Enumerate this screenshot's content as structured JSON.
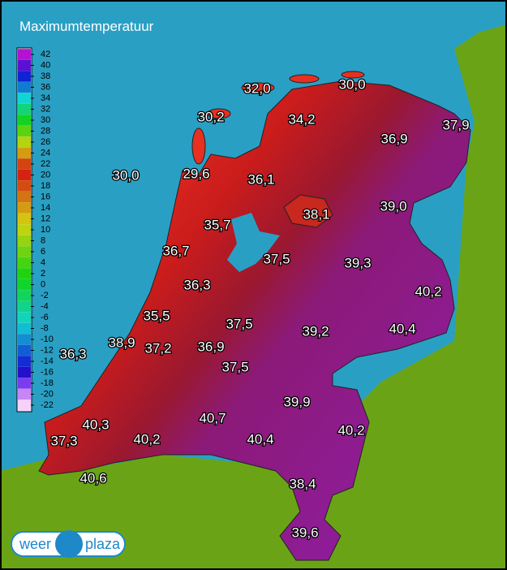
{
  "header": {
    "title": "Maximumtemperatuur"
  },
  "legend": {
    "ticks": [
      42,
      40,
      38,
      36,
      34,
      32,
      30,
      28,
      26,
      24,
      22,
      20,
      18,
      16,
      14,
      12,
      10,
      8,
      6,
      4,
      2,
      0,
      -2,
      -4,
      -6,
      -8,
      -10,
      -12,
      -14,
      -16,
      -18,
      -20,
      -22
    ]
  },
  "stations": [
    "32,0",
    "30,0",
    "30,2",
    "34,2",
    "37,9",
    "36,9",
    "30,0",
    "29,6",
    "36,1",
    "39,0",
    "38,1",
    "35,7",
    "36,7",
    "37,5",
    "39,3",
    "36,3",
    "40,2",
    "35,5",
    "37,5",
    "39,2",
    "40,4",
    "38,9",
    "37,2",
    "36,9",
    "36,3",
    "37,5",
    "39,9",
    "40,3",
    "40,7",
    "40,2",
    "37,3",
    "40,2",
    "40,4",
    "40,6",
    "38,4",
    "39,6"
  ],
  "logo": {
    "left": "weer",
    "right": "plaza"
  }
}
